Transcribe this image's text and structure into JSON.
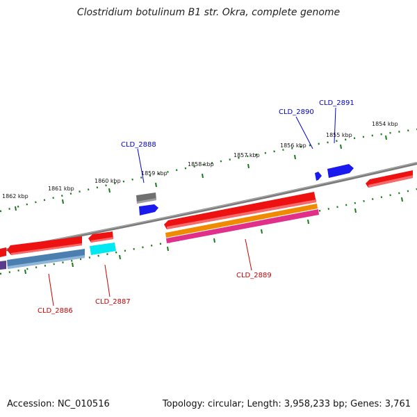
{
  "title": "Clostridium botulinum B1 str. Okra, complete genome",
  "footer": {
    "accession": "Accession: NC_010516",
    "topology": "Topology: circular; Length: 3,958,233 bp; Genes: 3,761"
  },
  "colors": {
    "backbone": "#808080",
    "tick": "#1a7a1a",
    "forward_label": "#0000cc",
    "reverse_label": "#cc0000",
    "red": "#ee1111",
    "blue": "#1a1aee",
    "gray": "#707070",
    "cyan": "#00e8f0",
    "orange": "#f08a00",
    "magenta": "#e0308a",
    "steelblue": "#4a7fb0",
    "purple": "#5a3a8a"
  },
  "tick_labels_outer": [
    "1862 kbp",
    "1861 kbp",
    "1860 kbp",
    "1859 kbp",
    "1858 kbp",
    "1857 kbp",
    "1856 kbp",
    "1855 kbp",
    "1854 kbp"
  ],
  "gene_labels": {
    "cld_2888": "CLD_2888",
    "cld_2890": "CLD_2890",
    "cld_2891": "CLD_2891",
    "cld_2886": "CLD_2886",
    "cld_2887": "CLD_2887",
    "cld_2889": "CLD_2889"
  }
}
